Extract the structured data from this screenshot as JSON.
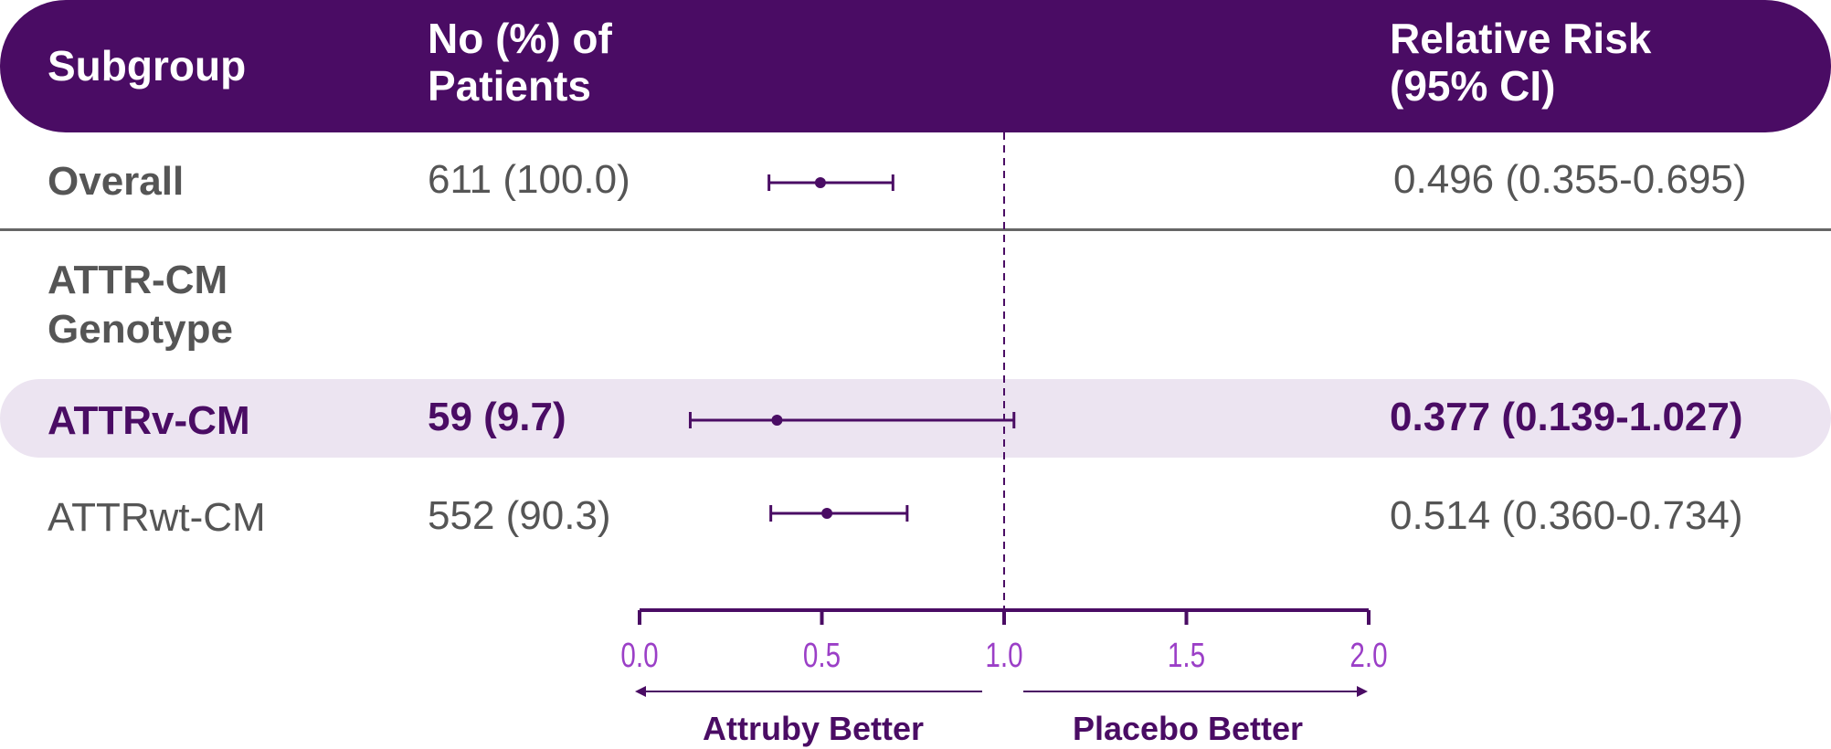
{
  "header": {
    "subgroup": "Subgroup",
    "patients_line1": "No (%) of",
    "patients_line2": "Patients",
    "risk_line1": "Relative Risk",
    "risk_line2": "(95% CI)"
  },
  "rows": {
    "overall": {
      "label": "Overall",
      "patients": "611 (100.0)",
      "rr": "0.496 (0.355-0.695)"
    },
    "genotype": {
      "label_line1": "ATTR-CM",
      "label_line2": "Genotype"
    },
    "attrv": {
      "label": "ATTRv-CM",
      "patients": "59 (9.7)",
      "rr": "0.377 (0.139-1.027)"
    },
    "attrwt": {
      "label": "ATTRwt-CM",
      "patients": "552 (90.3)",
      "rr": "0.514 (0.360-0.734)"
    }
  },
  "axis": {
    "left_label": "Attruby Better",
    "right_label": "Placebo Better"
  },
  "colors": {
    "brand": "#4a0c64",
    "highlight": "#ece4f1",
    "tick_text": "#9b3fc7",
    "body_text": "#555555"
  },
  "chart_data": {
    "type": "forest",
    "title": "",
    "xlabel": "Relative Risk",
    "xlim": [
      0.0,
      2.0
    ],
    "ticks": [
      0.0,
      0.5,
      1.0,
      1.5,
      2.0
    ],
    "tick_labels": [
      "0.0",
      "0.5",
      "1.0",
      "1.5",
      "2.0"
    ],
    "reference_line": 1.0,
    "series": [
      {
        "name": "Overall",
        "estimate": 0.496,
        "lower": 0.355,
        "upper": 0.695
      },
      {
        "name": "ATTRv-CM",
        "estimate": 0.377,
        "lower": 0.139,
        "upper": 1.027
      },
      {
        "name": "ATTRwt-CM",
        "estimate": 0.514,
        "lower": 0.36,
        "upper": 0.734
      }
    ]
  }
}
